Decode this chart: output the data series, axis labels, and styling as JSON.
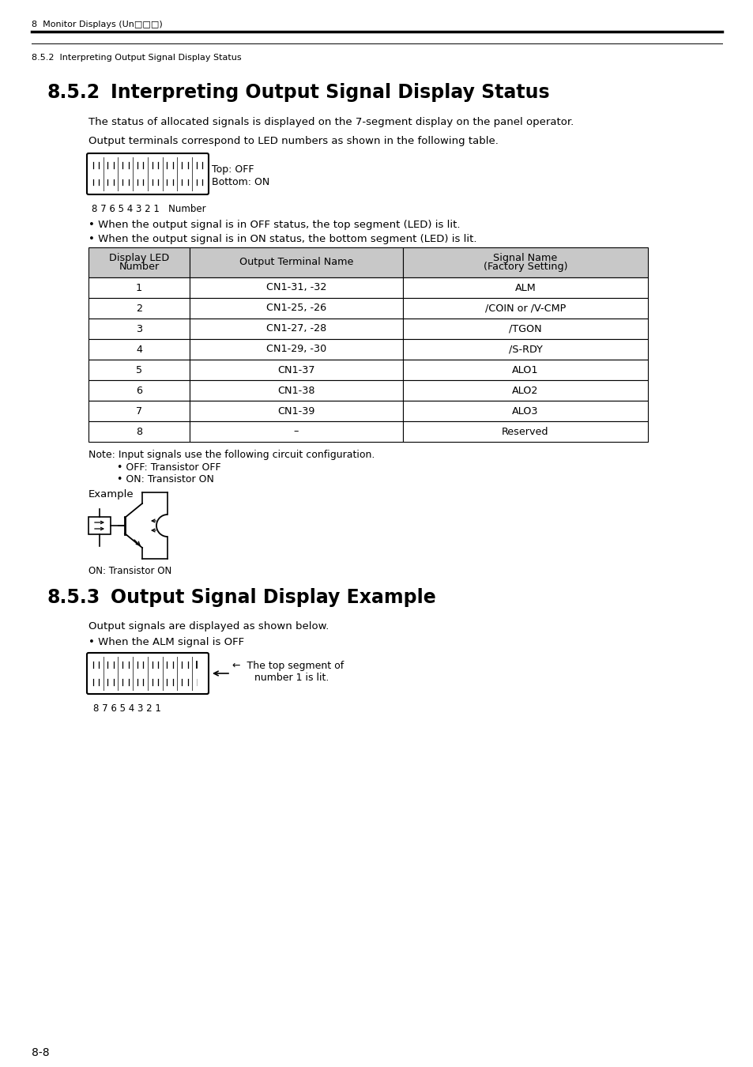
{
  "page_header_main": "8  Monitor Displays (Un□□□)",
  "page_header_sub": "8.5.2  Interpreting Output Signal Display Status",
  "section_852_num": "8.5.2",
  "section_852_title": "Interpreting Output Signal Display Status",
  "para1": "The status of allocated signals is displayed on the 7-segment display on the panel operator.",
  "para2": "Output terminals correspond to LED numbers as shown in the following table.",
  "display_label_top": "Top: OFF",
  "display_label_bottom": "Bottom: ON",
  "display_numbers": "8 7 6 5 4 3 2 1   Number",
  "bullet1": "• When the output signal is in OFF status, the top segment (LED) is lit.",
  "bullet2": "• When the output signal is in ON status, the bottom segment (LED) is lit.",
  "table_headers": [
    "Display LED\nNumber",
    "Output Terminal Name",
    "Signal Name\n(Factory Setting)"
  ],
  "table_rows": [
    [
      "1",
      "CN1-31, -32",
      "ALM"
    ],
    [
      "2",
      "CN1-25, -26",
      "/COIN or /V-CMP"
    ],
    [
      "3",
      "CN1-27, -28",
      "/TGON"
    ],
    [
      "4",
      "CN1-29, -30",
      "/S-RDY"
    ],
    [
      "5",
      "CN1-37",
      "ALO1"
    ],
    [
      "6",
      "CN1-38",
      "ALO2"
    ],
    [
      "7",
      "CN1-39",
      "ALO3"
    ],
    [
      "8",
      "–",
      "Reserved"
    ]
  ],
  "table_header_bg": "#c8c8c8",
  "note_text": "Note: Input signals use the following circuit configuration.",
  "note_bullet1": "• OFF: Transistor OFF",
  "note_bullet2": "• ON: Transistor ON",
  "example_label": "Example",
  "on_transistor_label": "ON: Transistor ON",
  "section_853_num": "8.5.3",
  "section_853_title": "Output Signal Display Example",
  "para3": "Output signals are displayed as shown below.",
  "bullet3": "• When the ALM signal is OFF",
  "display2_numbers": "8 7 6 5 4 3 2 1",
  "page_num": "8-8",
  "bg_color": "#ffffff"
}
